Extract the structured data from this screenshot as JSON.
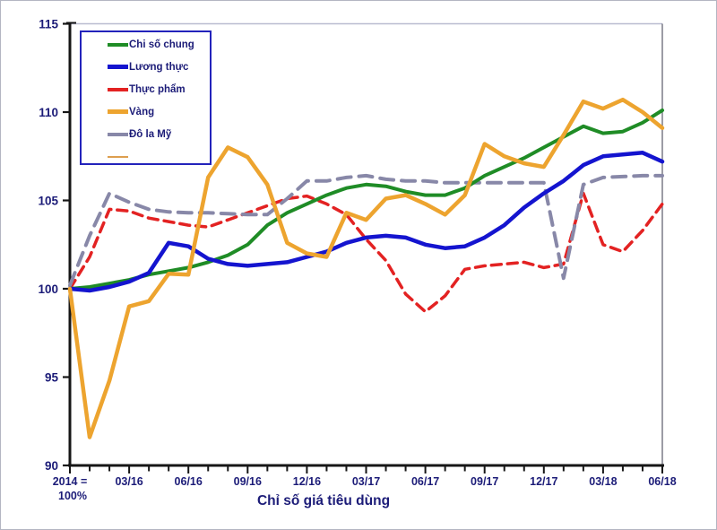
{
  "figure": {
    "bottom_title": "Chỉ số giá tiêu dùng"
  },
  "legend": {
    "items": [
      {
        "label": "Chi số chung",
        "color": "#1f8c26",
        "thickness": 4
      },
      {
        "label": "Lương thực",
        "color": "#1414cf",
        "thickness": 5
      },
      {
        "label": "Thực phẩm",
        "color": "#e32222",
        "thickness": 4
      },
      {
        "label": "Vàng",
        "color": "#eda42f",
        "thickness": 5
      },
      {
        "label": "Đô la Mỹ",
        "color": "#8888a8",
        "thickness": 4
      },
      {
        "label": "",
        "color": "#dd9f4f",
        "thickness": 2
      }
    ]
  },
  "chart_data": {
    "type": "line",
    "title": "Chỉ số giá tiêu dùng",
    "x_axis": {
      "base_label_line1": "2014 =",
      "base_label_line2": "100%",
      "tick_labels": [
        "03/16",
        "06/16",
        "09/16",
        "12/16",
        "03/17",
        "06/17",
        "09/17",
        "12/17",
        "03/18",
        "06/18"
      ],
      "tick_month_positions": [
        3,
        6,
        9,
        12,
        15,
        18,
        21,
        24,
        27,
        30
      ],
      "months_total": 31
    },
    "y_axis": {
      "min": 90,
      "max": 115,
      "step": 5,
      "tick_labels": [
        "90",
        "95",
        "100",
        "105",
        "110",
        "115"
      ]
    },
    "legend_position": "top-left",
    "grid": false,
    "series": [
      {
        "name": "Chi số chung",
        "color": "#1f8c26",
        "dash": null,
        "width": 4,
        "values": [
          100.0,
          100.1,
          100.3,
          100.5,
          100.8,
          101.0,
          101.2,
          101.5,
          101.9,
          102.5,
          103.6,
          104.3,
          104.8,
          105.3,
          105.7,
          105.9,
          105.8,
          105.5,
          105.3,
          105.3,
          105.7,
          106.4,
          106.9,
          107.4,
          108.0,
          108.6,
          109.2,
          108.8,
          108.9,
          109.4,
          110.1
        ]
      },
      {
        "name": "Lương thực",
        "color": "#1414cf",
        "dash": null,
        "width": 4.5,
        "values": [
          100.0,
          99.9,
          100.1,
          100.4,
          100.9,
          102.6,
          102.4,
          101.7,
          101.4,
          101.3,
          101.4,
          101.5,
          101.8,
          102.1,
          102.6,
          102.9,
          103.0,
          102.9,
          102.5,
          102.3,
          102.4,
          102.9,
          103.6,
          104.6,
          105.4,
          106.1,
          107.0,
          107.5,
          107.6,
          107.7,
          107.2
        ]
      },
      {
        "name": "Thực phẩm",
        "color": "#e32222",
        "dash": "11,7",
        "width": 3.5,
        "values": [
          100.0,
          101.8,
          104.5,
          104.4,
          104.0,
          103.8,
          103.6,
          103.5,
          103.9,
          104.3,
          104.7,
          105.1,
          105.25,
          104.8,
          104.2,
          102.8,
          101.6,
          99.7,
          98.7,
          99.6,
          101.1,
          101.3,
          101.4,
          101.5,
          101.2,
          101.4,
          105.4,
          102.5,
          102.1,
          103.3,
          104.8
        ]
      },
      {
        "name": "Vàng",
        "color": "#eda42f",
        "dash": null,
        "width": 4.5,
        "values": [
          100.0,
          91.6,
          94.8,
          99.0,
          99.3,
          100.85,
          100.8,
          106.3,
          108.0,
          107.45,
          105.9,
          102.6,
          102.0,
          101.8,
          104.3,
          103.9,
          105.1,
          105.3,
          104.8,
          104.2,
          105.3,
          108.2,
          107.5,
          107.1,
          106.9,
          108.7,
          110.6,
          110.2,
          110.7,
          110.0,
          109.1
        ]
      },
      {
        "name": "Đô la Mỹ",
        "color": "#8888a8",
        "dash": "15,9",
        "width": 4,
        "values": [
          100.2,
          103.0,
          105.4,
          104.9,
          104.5,
          104.35,
          104.3,
          104.3,
          104.25,
          104.2,
          104.2,
          105.1,
          106.1,
          106.1,
          106.3,
          106.4,
          106.2,
          106.1,
          106.1,
          106.0,
          106.0,
          106.0,
          106.0,
          106.0,
          106.0,
          100.6,
          105.9,
          106.3,
          106.35,
          106.4,
          106.4
        ]
      }
    ]
  },
  "colors": {
    "text_navy": "#1c1c78",
    "axis": "#161616",
    "legend_border": "#2323bb",
    "frame_top": "#b9bcd0",
    "frame_right": "#5a5a6a",
    "background": "#ffffff",
    "figure_border": "#b4b6c2"
  }
}
